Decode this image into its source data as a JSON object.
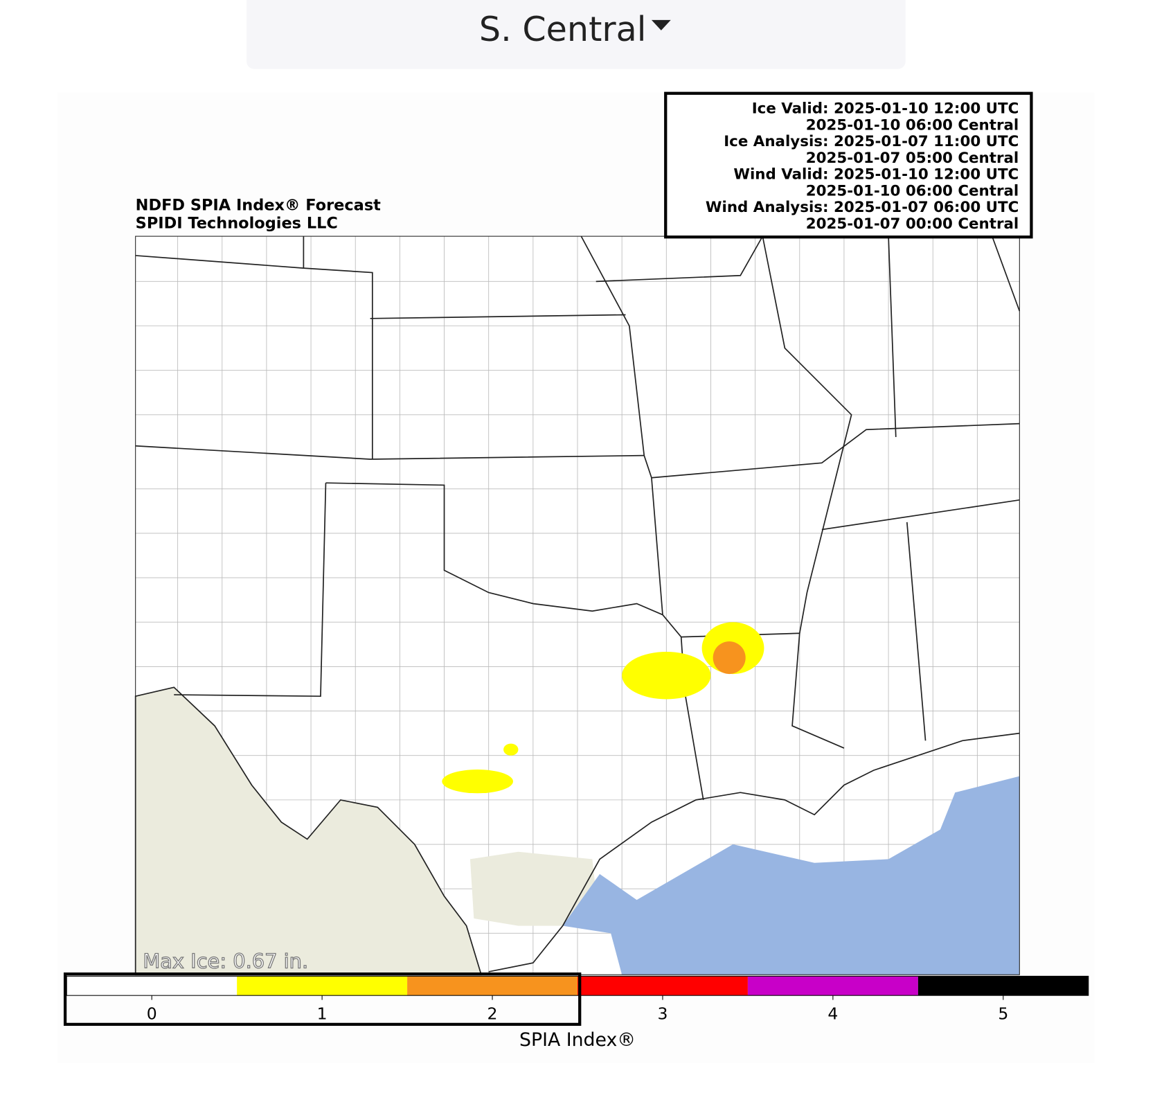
{
  "region_selector": {
    "label": "S. Central"
  },
  "map": {
    "title": [
      "NDFD SPIA Index® Forecast",
      "SPIDI Technologies LLC"
    ],
    "info": [
      "Ice Valid: 2025-01-10 12:00 UTC",
      "2025-01-10 06:00 Central",
      "Ice Analysis: 2025-01-07 11:00 UTC",
      "2025-01-07 05:00 Central",
      "Wind Valid: 2025-01-10 12:00 UTC",
      "2025-01-10 06:00 Central",
      "Wind Analysis: 2025-01-07 06:00 UTC",
      "2025-01-07 00:00 Central"
    ],
    "max_ice": "Max Ice: 0.67 in."
  },
  "colorbar": {
    "label": "SPIA Index®",
    "lim": [
      -0.5,
      5.5
    ],
    "ticks": [
      0,
      1,
      2,
      3,
      4,
      5
    ],
    "colors": [
      "#ffffff",
      "#ffff00",
      "#f7931e",
      "#ff0000",
      "#c800c8",
      "#000000"
    ]
  }
}
